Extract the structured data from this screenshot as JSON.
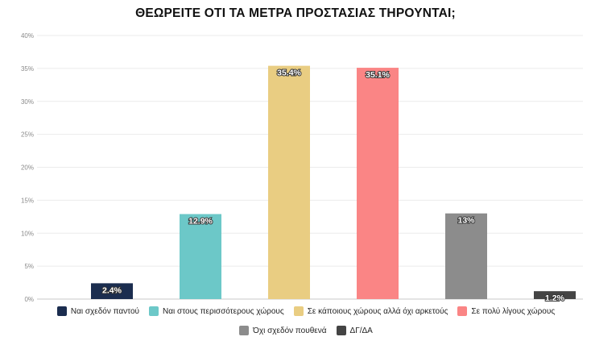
{
  "chart_data": {
    "type": "bar",
    "title": "ΘΕΩΡΕΙΤΕ ΟΤΙ ΤΑ ΜΕΤΡΑ ΠΡΟΣΤΑΣΙΑΣ ΤΗΡΟΥΝΤΑΙ;",
    "xlabel": "",
    "ylabel": "",
    "ylim": [
      0,
      40
    ],
    "yticks": [
      "0%",
      "5%",
      "10%",
      "15%",
      "20%",
      "25%",
      "30%",
      "35%",
      "40%"
    ],
    "grid": true,
    "legend_position": "bottom",
    "categories": [
      "Ναι σχεδόν παντού",
      "Ναι στους περισσότερους χώρους",
      "Σε κάποιους χώρους αλλά όχι αρκετούς",
      "Σε πολύ λίγους χώρους",
      "Όχι σχεδόν πουθενά",
      "ΔΓ/ΔΑ"
    ],
    "values": [
      2.4,
      12.9,
      35.4,
      35.1,
      13,
      1.2
    ],
    "data_labels": [
      "2.4%",
      "12.9%",
      "35.4%",
      "35.1%",
      "13%",
      "1.2%"
    ],
    "colors": [
      "#1b2d4f",
      "#6cc8c8",
      "#e9cd82",
      "#fa8585",
      "#8c8c8c",
      "#444444"
    ]
  }
}
